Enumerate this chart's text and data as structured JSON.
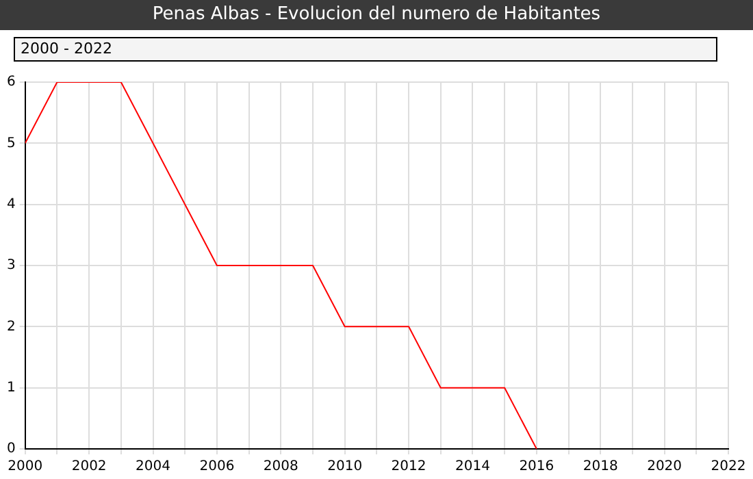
{
  "chart_data": {
    "type": "line",
    "title": "Penas Albas - Evolucion del numero de Habitantes",
    "annotations": [
      "2000 - 2022"
    ],
    "x": [
      2000,
      2001,
      2002,
      2003,
      2004,
      2005,
      2006,
      2007,
      2008,
      2009,
      2010,
      2011,
      2012,
      2013,
      2014,
      2015,
      2016
    ],
    "series": [
      {
        "color": "#ff0000",
        "values": [
          5,
          6,
          6,
          6,
          5,
          4,
          3,
          3,
          3,
          3,
          2,
          2,
          2,
          1,
          1,
          1,
          0
        ]
      }
    ],
    "xlim": [
      2000,
      2022
    ],
    "xticks": [
      2000,
      {
        "value": 2001,
        "label": null
      },
      2002,
      {
        "value": 2003,
        "label": null
      },
      2004,
      {
        "value": 2005,
        "label": null
      },
      2006,
      {
        "value": 2007,
        "label": null
      },
      2008,
      {
        "value": 2009,
        "label": null
      },
      2010,
      {
        "value": 2011,
        "label": null
      },
      2012,
      {
        "value": 2013,
        "label": null
      },
      2014,
      {
        "value": 2015,
        "label": null
      },
      2016,
      {
        "value": 2017,
        "label": null
      },
      2018,
      {
        "value": 2019,
        "label": null
      },
      2020,
      {
        "value": 2021,
        "label": null
      },
      2022
    ],
    "ylim": [
      0,
      6
    ],
    "yticks": [
      0,
      1,
      2,
      3,
      4,
      5,
      6
    ],
    "grid": true,
    "legend": false,
    "marker": "none",
    "line_style": "solid"
  }
}
